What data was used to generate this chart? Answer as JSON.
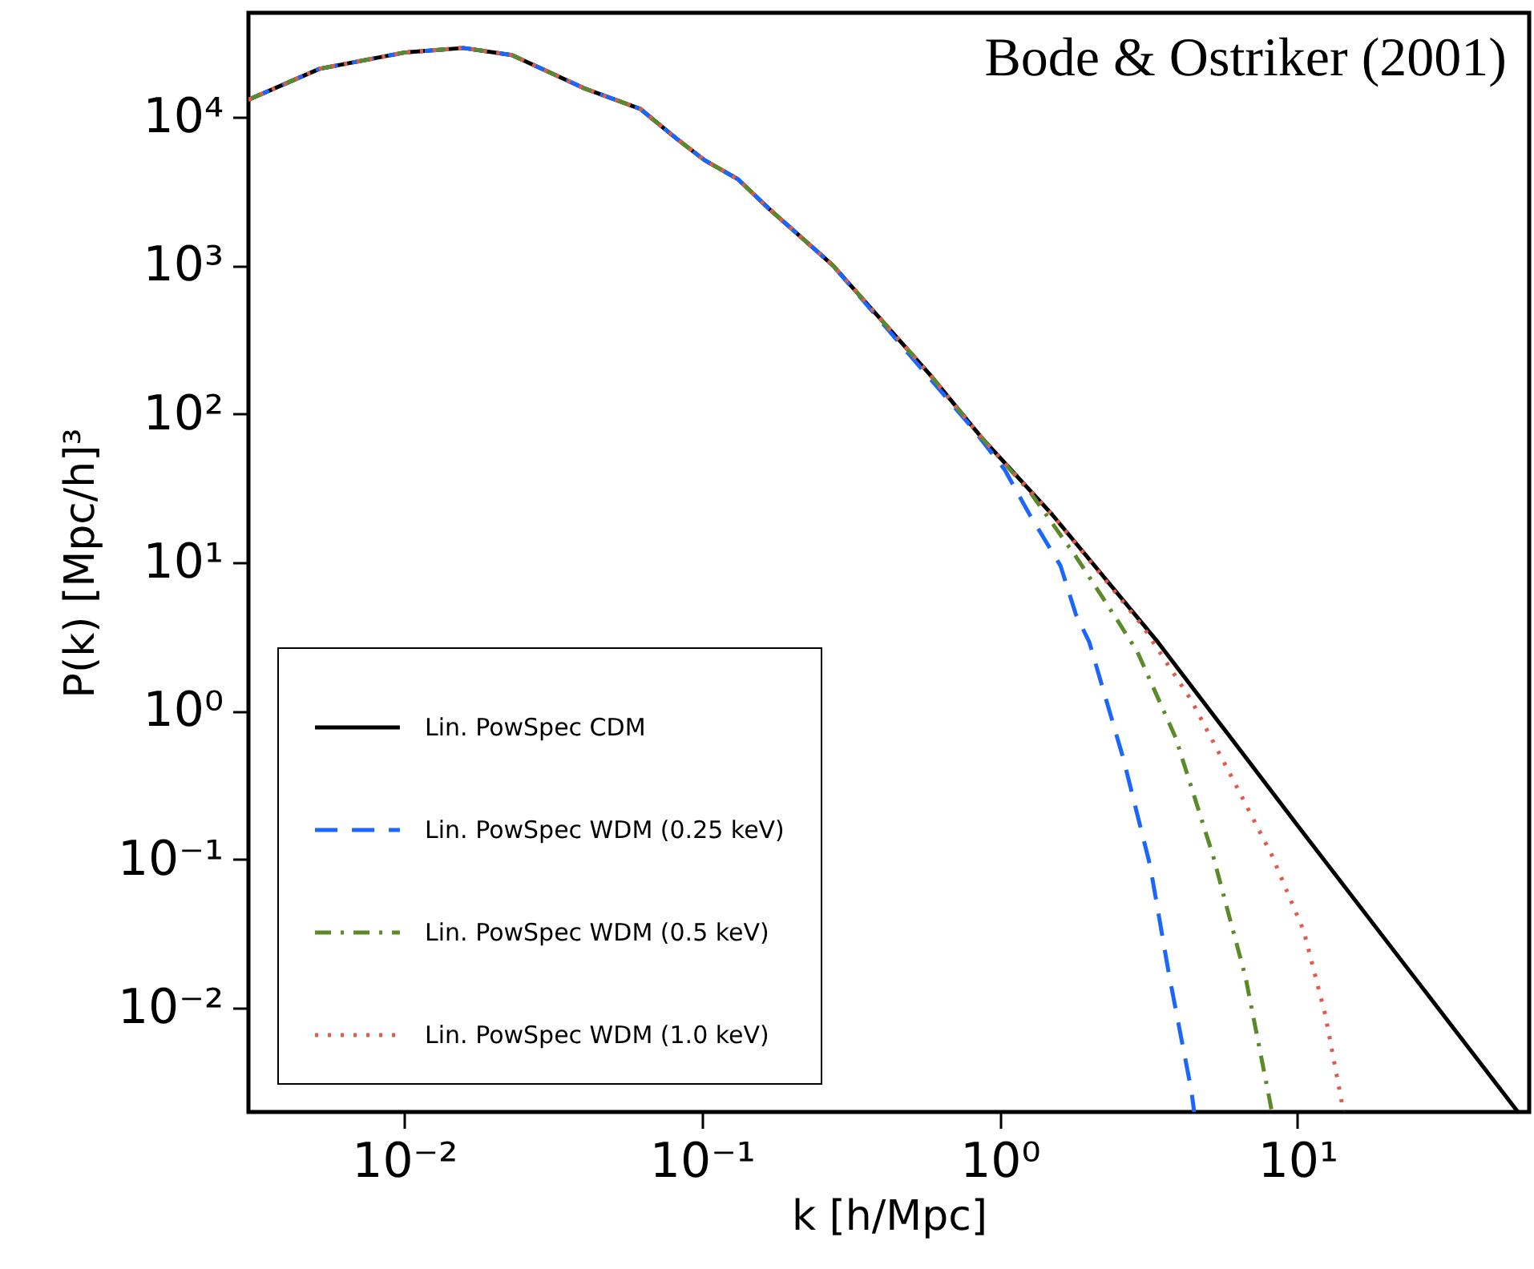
{
  "chart_data": {
    "type": "line",
    "xlabel": "k [h/Mpc]",
    "ylabel": "P(k) [Mpc/h]³",
    "annotations": [
      "Bode & Ostriker (2001)"
    ],
    "log": "xy",
    "grid": false,
    "legend": "bottom left",
    "marker": "none",
    "xlim": [
      0.003,
      60
    ],
    "ylim": [
      0.002,
      50000
    ],
    "xticks": [
      {
        "value": 0.01,
        "label": "10⁻²"
      },
      {
        "value": 0.1,
        "label": "10⁻¹"
      },
      {
        "value": 1,
        "label": "10⁰"
      },
      {
        "value": 10,
        "label": "10¹"
      }
    ],
    "yticks": [
      {
        "value": 0.01,
        "label": "10⁻²"
      },
      {
        "value": 0.1,
        "label": "10⁻¹"
      },
      {
        "value": 1,
        "label": "10⁰"
      },
      {
        "value": 10,
        "label": "10¹"
      },
      {
        "value": 100,
        "label": "10²"
      },
      {
        "value": 1000,
        "label": "10³"
      },
      {
        "value": 10000,
        "label": "10⁴"
      }
    ],
    "series": [
      {
        "name": "Lin. PowSpec CDM",
        "color": "#000000",
        "line_style": "solid",
        "x": [
          0.003,
          0.0052,
          0.01,
          0.0158,
          0.023,
          0.04,
          0.062,
          0.083,
          0.102,
          0.132,
          0.168,
          0.275,
          0.58,
          0.87,
          1.5,
          3.4,
          10,
          55
        ],
        "values": [
          13000,
          21000,
          27000,
          29000,
          26000,
          15600,
          11300,
          7000,
          5100,
          3800,
          2400,
          1000,
          186,
          69,
          21,
          2.9,
          0.17,
          0.002
        ]
      },
      {
        "name": "Lin. PowSpec WDM (0.25 keV)",
        "color": "#1a66ff",
        "line_style": "dashed",
        "x": [
          0.003,
          0.0052,
          0.01,
          0.0158,
          0.023,
          0.04,
          0.062,
          0.083,
          0.102,
          0.132,
          0.168,
          0.275,
          0.58,
          0.81,
          1.04,
          1.26,
          1.6,
          1.8,
          2.0,
          2.6,
          3.2,
          3.7,
          4.4,
          4.5
        ],
        "values": [
          13000,
          21000,
          27000,
          29000,
          26000,
          15600,
          11300,
          7000,
          5100,
          3800,
          2400,
          1000,
          175,
          80,
          42,
          21,
          9.5,
          4.5,
          2.9,
          0.48,
          0.091,
          0.017,
          0.0028,
          0.002
        ]
      },
      {
        "name": "Lin. PowSpec WDM (0.5 keV)",
        "color": "#5a8a2a",
        "line_style": "dashdot",
        "x": [
          0.003,
          0.0052,
          0.01,
          0.0158,
          0.023,
          0.04,
          0.062,
          0.083,
          0.102,
          0.132,
          0.168,
          0.275,
          0.58,
          0.87,
          1.26,
          1.8,
          2.5,
          2.9,
          3.9,
          5.2,
          6.7,
          8.1,
          8.2
        ],
        "values": [
          13000,
          21000,
          27000,
          29000,
          26000,
          15600,
          11300,
          7000,
          5100,
          3800,
          2400,
          1000,
          186,
          69,
          30,
          11,
          4.0,
          2.5,
          0.66,
          0.107,
          0.016,
          0.0023,
          0.002
        ]
      },
      {
        "name": "Lin. PowSpec WDM (1.0 keV)",
        "color": "#e05a4e",
        "line_style": "dotted",
        "x": [
          0.003,
          0.0052,
          0.01,
          0.0158,
          0.023,
          0.04,
          0.062,
          0.083,
          0.102,
          0.132,
          0.168,
          0.275,
          0.58,
          0.87,
          1.5,
          3.0,
          4.4,
          6.1,
          8.2,
          10.5,
          12.4,
          14.1,
          14.3
        ],
        "values": [
          13000,
          21000,
          27000,
          29000,
          26000,
          15600,
          11300,
          7000,
          5100,
          3800,
          2400,
          1000,
          186,
          69,
          21,
          3.8,
          1.18,
          0.34,
          0.107,
          0.033,
          0.009,
          0.0023,
          0.002
        ]
      }
    ]
  }
}
